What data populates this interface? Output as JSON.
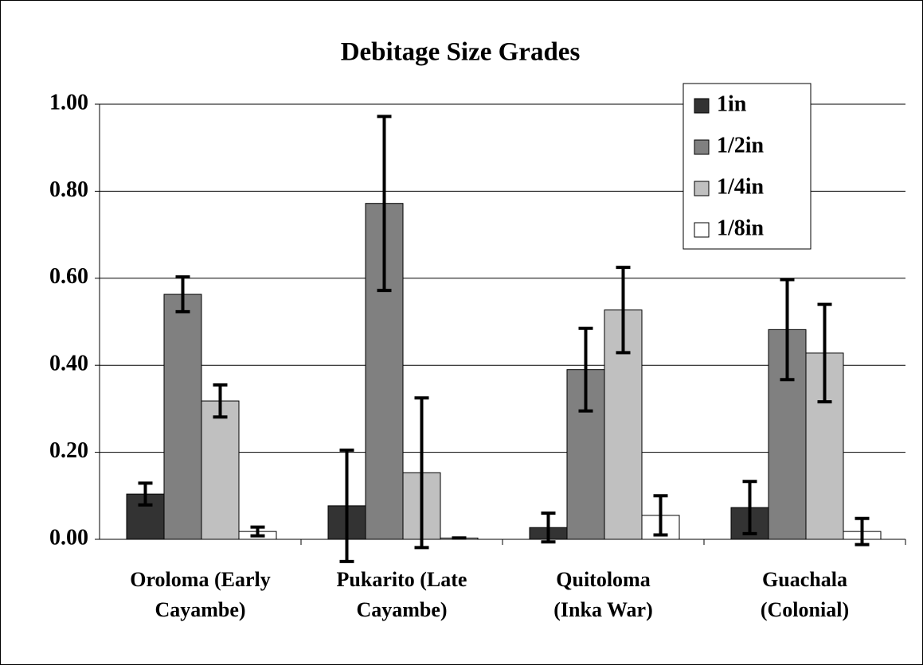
{
  "chart_data": {
    "type": "bar",
    "title": "Debitage Size Grades",
    "categories": [
      "Oroloma (Early\nCayambe)",
      "Pukarito (Late\nCayambe)",
      "Quitoloma\n(Inka War)",
      "Guachala\n(Colonial)"
    ],
    "series": [
      {
        "name": "1in",
        "color": "#333333",
        "values": [
          0.104,
          0.077,
          0.027,
          0.073
        ],
        "errors": [
          0.025,
          0.128,
          0.033,
          0.06
        ]
      },
      {
        "name": "1/2in",
        "color": "#808080",
        "values": [
          0.563,
          0.772,
          0.39,
          0.482
        ],
        "errors": [
          0.04,
          0.2,
          0.095,
          0.115
        ]
      },
      {
        "name": "1/4in",
        "color": "#c0c0c0",
        "values": [
          0.318,
          0.153,
          0.527,
          0.428
        ],
        "errors": [
          0.037,
          0.172,
          0.098,
          0.112
        ]
      },
      {
        "name": "1/8in",
        "color": "#ffffff",
        "values": [
          0.018,
          0.003,
          0.055,
          0.018
        ],
        "errors": [
          0.01,
          0,
          0.045,
          0.03
        ]
      }
    ],
    "ylim": [
      0,
      1
    ],
    "yticks": [
      {
        "value": 0,
        "label": "0.00"
      },
      {
        "value": 0.2,
        "label": "0.20"
      },
      {
        "value": 0.4,
        "label": "0.40"
      },
      {
        "value": 0.6,
        "label": "0.60"
      },
      {
        "value": 0.8,
        "label": "0.80"
      },
      {
        "value": 1,
        "label": "1.00"
      }
    ],
    "grid": true,
    "legend": "top-right"
  }
}
